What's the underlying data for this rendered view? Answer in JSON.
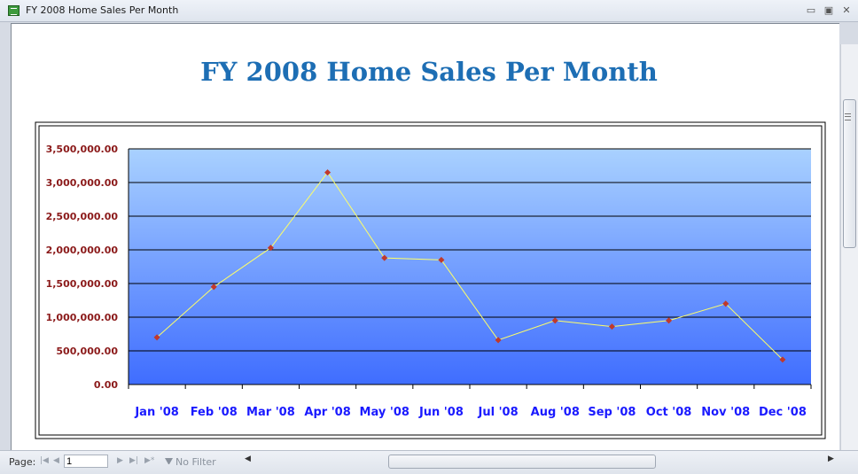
{
  "window": {
    "title": "FY 2008 Home Sales Per Month",
    "buttons": {
      "minimize": "▭",
      "restore": "▣",
      "close": "✕"
    }
  },
  "report": {
    "title": "FY 2008 Home Sales Per Month"
  },
  "statusbar": {
    "page_label": "Page:",
    "page_value": "1",
    "filter_label": "No Filter"
  },
  "colors": {
    "plot_top": "#a9d1ff",
    "plot_bottom": "#3f6dff",
    "line": "#ffff66",
    "marker": "#c0392b",
    "y_ticks": "#8b1a1a",
    "x_ticks": "#1a1aff",
    "title": "#1d6eb4"
  },
  "chart_data": {
    "type": "line",
    "title": "FY 2008 Home Sales Per Month",
    "categories": [
      "Jan '08",
      "Feb '08",
      "Mar '08",
      "Apr '08",
      "May '08",
      "Jun '08",
      "Jul '08",
      "Aug '08",
      "Sep '08",
      "Oct '08",
      "Nov '08",
      "Dec '08"
    ],
    "series": [
      {
        "values": [
          700000,
          1450000,
          2030000,
          3150000,
          1880000,
          1850000,
          660000,
          950000,
          860000,
          950000,
          1200000,
          370000
        ]
      }
    ],
    "y_ticks": [
      "0.00",
      "500,000.00",
      "1,000,000.00",
      "1,500,000.00",
      "2,000,000.00",
      "2,500,000.00",
      "3,000,000.00",
      "3,500,000.00"
    ],
    "ylim": [
      0,
      3500000
    ],
    "grid": true,
    "legend": "none"
  }
}
